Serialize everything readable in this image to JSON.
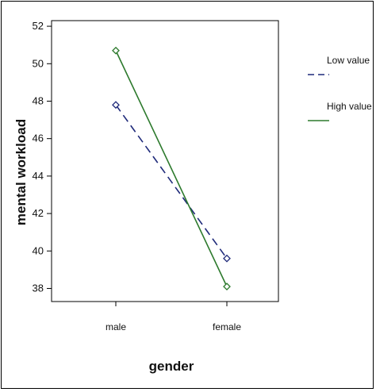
{
  "chart_data": {
    "type": "line",
    "title": "",
    "xlabel": "gender",
    "ylabel": "mental workload",
    "categories": [
      "male",
      "female"
    ],
    "ylim": [
      37.3,
      52.3
    ],
    "yticks": [
      38,
      40,
      42,
      44,
      46,
      48,
      50,
      52
    ],
    "grid": false,
    "legend_position": "right",
    "series": [
      {
        "name": "Low value",
        "values": [
          47.8,
          39.6
        ],
        "color": "#1f2a7a",
        "dash": "10,6"
      },
      {
        "name": "High value",
        "values": [
          50.7,
          38.1
        ],
        "color": "#2d7a2d",
        "dash": ""
      }
    ]
  }
}
